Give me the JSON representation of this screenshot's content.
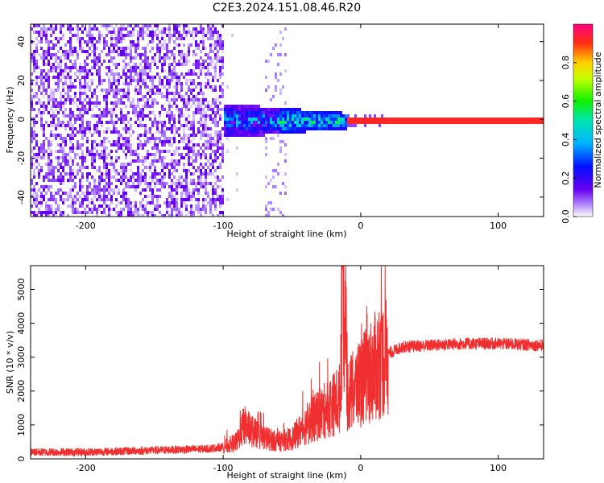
{
  "title": "C2E3.2024.151.08.46.R20",
  "colors": {
    "snr_line": "#f03030",
    "waterfall_low": "#dcc8ff",
    "waterfall_mid": "#6a00f0",
    "frame": "#000000"
  },
  "chart_data": [
    {
      "type": "heatmap",
      "title": "",
      "xlabel": "Height of straight line (km)",
      "ylabel": "Frequency (Hz)",
      "xlim": [
        -240,
        133
      ],
      "ylim": [
        -50,
        49
      ],
      "x_ticks": [
        -200,
        -100,
        0,
        100
      ],
      "x_tick_labels": [
        "-200",
        "-100",
        "0",
        "100"
      ],
      "y_ticks": [
        -40,
        -20,
        0,
        20,
        40
      ],
      "y_tick_labels": [
        "-40",
        "-20",
        "0",
        "20",
        "40"
      ],
      "colorbar": {
        "label": "Normalized spectral amplitude",
        "range": [
          0,
          1
        ],
        "ticks": [
          0.0,
          0.2,
          0.4,
          0.6,
          0.8
        ],
        "tick_labels": [
          "0.0",
          "0.2",
          "0.4",
          "0.6",
          "0.8"
        ],
        "colormap": "rainbow"
      },
      "regions": [
        {
          "x_range": [
            -240,
            -100
          ],
          "f_range": [
            -50,
            49
          ],
          "amplitude": 0.05,
          "description_level": "noise"
        },
        {
          "x_range": [
            -100,
            -60
          ],
          "f_range": [
            -8,
            8
          ],
          "amplitude": 0.3
        },
        {
          "x_range": [
            -60,
            -10
          ],
          "f_range": [
            -5,
            5
          ],
          "amplitude": 0.5
        },
        {
          "x_range": [
            -10,
            133
          ],
          "f_range": [
            -1,
            1
          ],
          "amplitude": 0.9
        }
      ]
    },
    {
      "type": "line",
      "title": "",
      "xlabel": "Height of straight line (km)",
      "ylabel": "SNR (10 * v/v)",
      "xlim": [
        -240,
        133
      ],
      "ylim": [
        0,
        5700
      ],
      "x_ticks": [
        -200,
        -100,
        0,
        100
      ],
      "x_tick_labels": [
        "-200",
        "-100",
        "0",
        "100"
      ],
      "y_ticks": [
        0,
        1000,
        2000,
        3000,
        4000,
        5000
      ],
      "y_tick_labels": [
        "0",
        "1000",
        "2000",
        "3000",
        "4000",
        "5000"
      ],
      "series": [
        {
          "color": "#f03030",
          "x": [
            -240,
            -200,
            -150,
            -110,
            -100,
            -90,
            -85,
            -75,
            -60,
            -50,
            -40,
            -30,
            -20,
            -15,
            -13,
            -10,
            -5,
            0,
            10,
            20,
            30,
            50,
            75,
            100,
            133
          ],
          "y": [
            200,
            200,
            250,
            300,
            350,
            500,
            1000,
            700,
            500,
            600,
            1000,
            1300,
            1600,
            1800,
            5600,
            1900,
            2000,
            2300,
            2700,
            3100,
            3300,
            3350,
            3400,
            3400,
            3350
          ]
        }
      ]
    }
  ]
}
